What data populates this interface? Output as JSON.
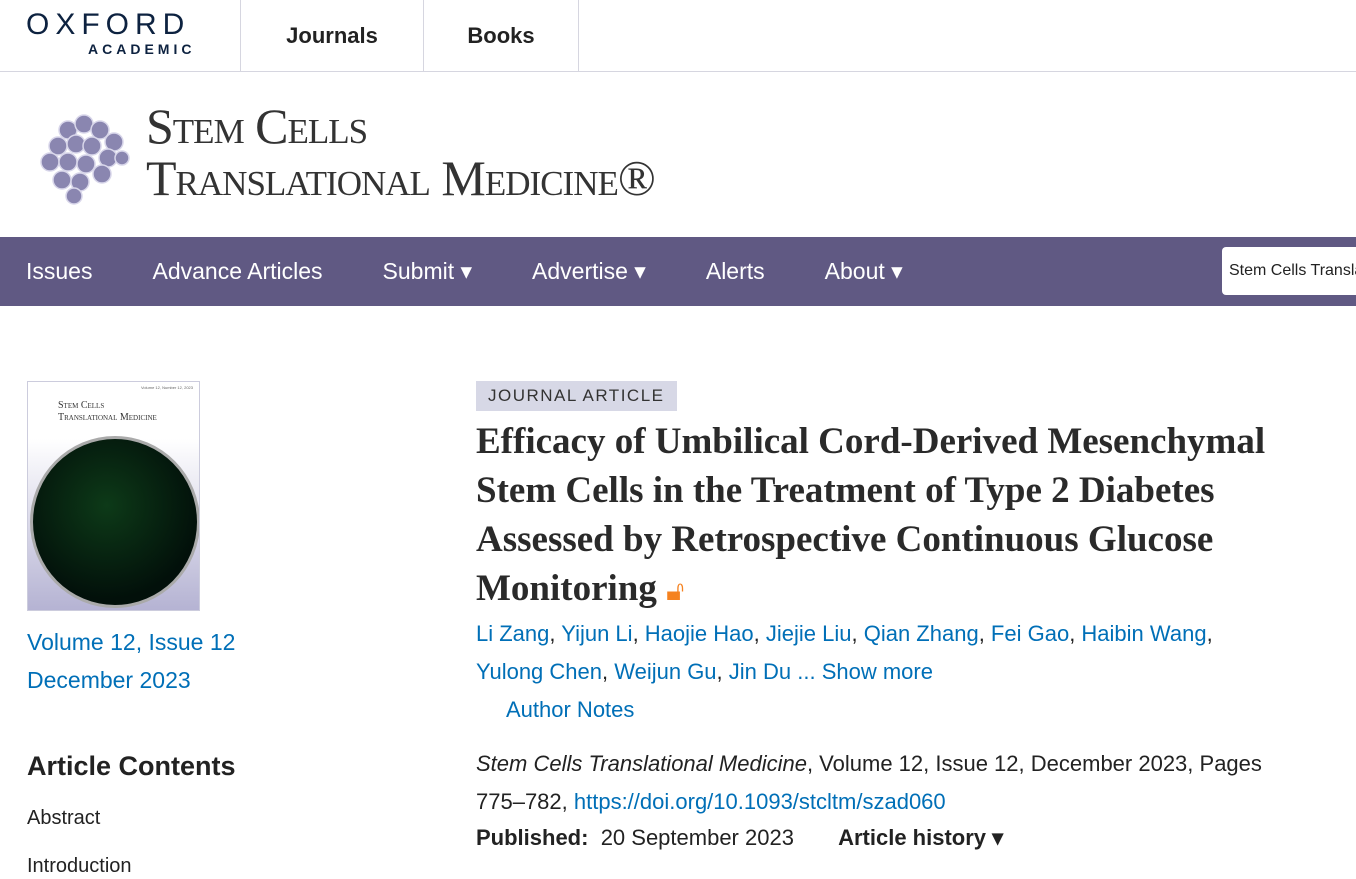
{
  "topbar": {
    "logo_line1": "OXFORD",
    "logo_line2": "ACADEMIC",
    "links": [
      "Journals",
      "Books"
    ]
  },
  "journal": {
    "title_line1": "Stem Cells",
    "title_line2": "Translational Medicine®"
  },
  "nav": {
    "items": [
      "Issues",
      "Advance Articles",
      "Submit ▾",
      "Advertise ▾",
      "Alerts",
      "About ▾"
    ],
    "search_value": "Stem Cells Translational Medicine"
  },
  "sidebar": {
    "cover_volume": "Volume 12, Number 12, 2023",
    "cover_title1": "Stem Cells",
    "cover_title2": "Translational Medicine",
    "volume_issue": "Volume 12, Issue 12",
    "date": "December 2023",
    "contents_heading": "Article Contents",
    "contents": [
      "Abstract",
      "Introduction"
    ]
  },
  "article": {
    "type": "JOURNAL ARTICLE",
    "title": "Efficacy of Umbilical Cord-Derived Mesenchymal Stem Cells in the Treatment of Type 2 Diabetes Assessed by Retrospective Continuous Glucose Monitoring",
    "open_access_icon": "unlock-icon",
    "authors": [
      "Li Zang",
      "Yijun Li",
      "Haojie Hao",
      "Jiejie Liu",
      "Qian Zhang",
      "Fei Gao",
      "Haibin Wang",
      "Yulong Chen",
      "Weijun Gu",
      "Jin Du"
    ],
    "show_more": "... Show more",
    "author_notes": "Author Notes",
    "journal_name": "Stem Cells Translational Medicine",
    "citation": ", Volume 12, Issue 12, December 2023, Pages 775–782, ",
    "doi": "https://doi.org/10.1093/stcltm/szad060",
    "published_label": "Published:",
    "published_date": "20 September 2023",
    "history": "Article history ▾"
  },
  "colors": {
    "nav": "#605983",
    "link": "#006fb7",
    "open_access": "#f58220"
  }
}
